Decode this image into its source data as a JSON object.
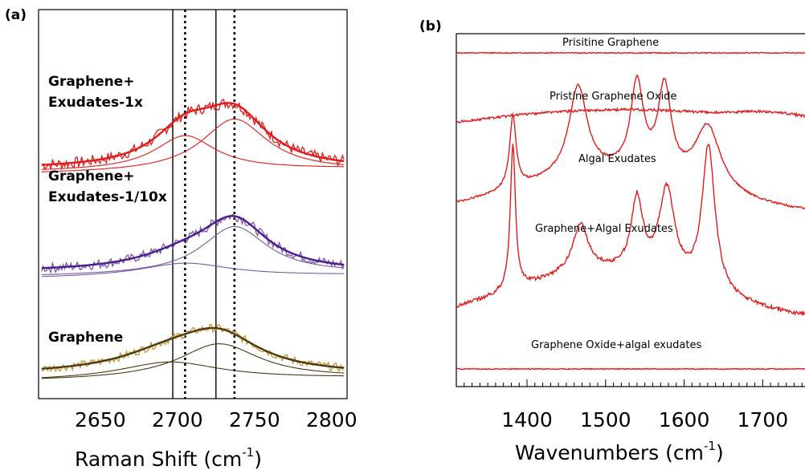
{
  "colors": {
    "red": "#e01b1b",
    "purple": "#4b1c8f",
    "purple_light": "#7a5aa8",
    "gold": "#c9952b",
    "gold_dark": "#4a3a12",
    "axis": "#000000"
  },
  "chart_data": [
    {
      "type": "line",
      "panel_label": "(a)",
      "xlabel_main": "Raman Shift (cm",
      "xlabel_sup": "-1",
      "xlabel_close": ")",
      "xlim": [
        2610,
        2810
      ],
      "x_ticks": [
        "2650",
        "2700",
        "2750",
        "2800"
      ],
      "x_tick_values": [
        2650,
        2700,
        2750,
        2800
      ],
      "grid": false,
      "solid_reference_lines": [
        2697,
        2725
      ],
      "dotted_reference_lines": [
        2705,
        2737
      ],
      "groups": [
        {
          "label_line1": "Graphene+",
          "label_line2": "Exudates-1x",
          "color_key": "red",
          "offset": 2.0,
          "fit_center": 2735,
          "fit_width": 40,
          "fit_height": 1.0,
          "components": [
            {
              "center": 2705,
              "width": 24,
              "height": 0.43,
              "base": 0.05
            },
            {
              "center": 2737,
              "width": 26,
              "height": 0.66,
              "base": 0.02
            }
          ],
          "noise": 0.07
        },
        {
          "label_line1": "Graphene+",
          "label_line2": "Exudates-1/10x",
          "color_key": "purple",
          "offset": 1.0,
          "fit_center": 2737,
          "fit_width": 38,
          "fit_height": 0.8,
          "components": [
            {
              "center": 2705,
              "width": 36,
              "height": 0.17,
              "base": 0.0
            },
            {
              "center": 2737,
              "width": 26,
              "height": 0.6,
              "base": 0.02
            }
          ],
          "noise": 0.06
        },
        {
          "label_line1": "Graphene",
          "label_line2": "",
          "color_key": "gold",
          "offset": 0.0,
          "fit_center": 2722,
          "fit_width": 44,
          "fit_height": 0.66,
          "components": [
            {
              "center": 2695,
              "width": 40,
              "height": 0.22,
              "base": 0.0
            },
            {
              "center": 2727,
              "width": 32,
              "height": 0.44,
              "base": 0.0
            }
          ],
          "noise": 0.05
        }
      ]
    },
    {
      "type": "line",
      "panel_label": "(b)",
      "xlabel_main": "Wavenumbers (cm",
      "xlabel_sup": "-1",
      "xlabel_close": ")",
      "xlim": [
        1310,
        1760
      ],
      "x_ticks": [
        "1400",
        "1500",
        "1600",
        "1700"
      ],
      "x_tick_values": [
        1400,
        1500,
        1600,
        1700
      ],
      "grid": false,
      "spectra": [
        {
          "label": "Prisitine Graphene",
          "baseline": 0.0,
          "peaks": [],
          "slope": 0.0,
          "noise": 0.01
        },
        {
          "label": "Pristine Graphene Oxide",
          "baseline": 0.0,
          "peaks": [
            {
              "c": 1720,
              "w": 60,
              "h": 0.12
            }
          ],
          "slope": 0.0,
          "noise": 0.02
        },
        {
          "label": "Algal Exudates",
          "baseline": 0.0,
          "peaks": [
            {
              "c": 1382,
              "w": 5,
              "h": 0.45
            },
            {
              "c": 1465,
              "w": 14,
              "h": 0.55
            },
            {
              "c": 1540,
              "w": 10,
              "h": 0.55
            },
            {
              "c": 1575,
              "w": 10,
              "h": 0.55
            },
            {
              "c": 1630,
              "w": 20,
              "h": 0.4
            }
          ],
          "slope": 0.0,
          "noise": 0.02
        },
        {
          "label": "Graphene+Algal Exudates",
          "baseline": 0.0,
          "peaks": [
            {
              "c": 1382,
              "w": 4,
              "h": 0.9
            },
            {
              "c": 1468,
              "w": 12,
              "h": 0.3
            },
            {
              "c": 1540,
              "w": 9,
              "h": 0.45
            },
            {
              "c": 1578,
              "w": 12,
              "h": 0.55
            },
            {
              "c": 1631,
              "w": 10,
              "h": 0.9
            }
          ],
          "slope": 0.0,
          "noise": 0.04
        },
        {
          "label": "Graphene Oxide+algal exudates",
          "baseline": 0.0,
          "peaks": [],
          "slope": 0.0,
          "noise": 0.01
        }
      ]
    }
  ]
}
